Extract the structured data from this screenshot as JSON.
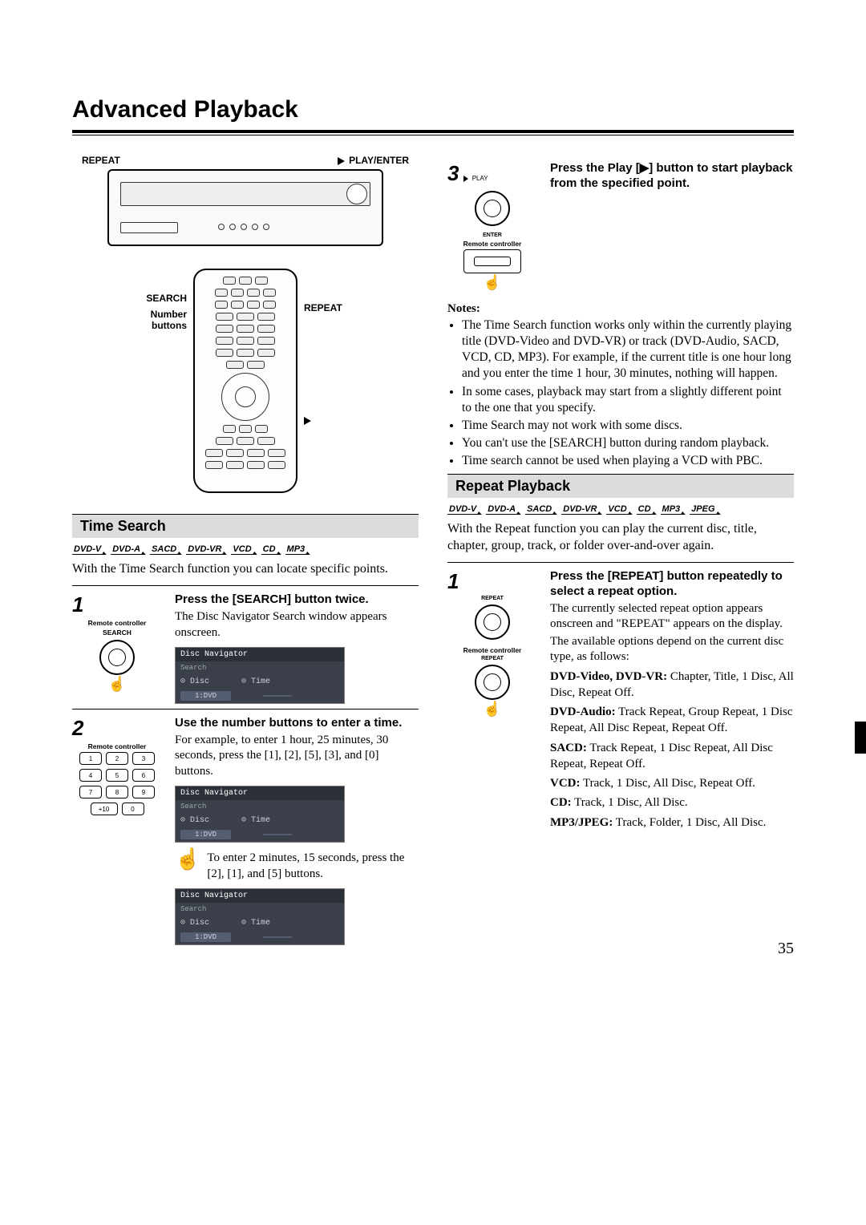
{
  "page_title": "Advanced Playback",
  "page_number": "35",
  "device_labels": {
    "repeat": "REPEAT",
    "play_enter": "PLAY/ENTER"
  },
  "remote_labels": {
    "search": "SEARCH",
    "number_buttons": "Number buttons",
    "repeat": "REPEAT",
    "play": "▶"
  },
  "left": {
    "section": "Time Search",
    "formats": [
      "DVD-V",
      "DVD-A",
      "SACD",
      "DVD-VR",
      "VCD",
      "CD",
      "MP3"
    ],
    "intro": "With the Time Search function you can locate specific points.",
    "step1": {
      "num": "1",
      "rc": "Remote controller",
      "btn": "SEARCH",
      "head": "Press the [SEARCH] button twice.",
      "text": "The Disc Navigator Search window appears onscreen.",
      "nav_title": "Disc Navigator",
      "nav_sub": "Search",
      "nav_disc": "⊙  Disc",
      "nav_discv": "1:DVD",
      "nav_time": "⊙  Time",
      "nav_timev": ""
    },
    "step2": {
      "num": "2",
      "rc": "Remote controller",
      "head": "Use the number buttons to enter a time.",
      "text1": "For example, to enter 1 hour, 25 minutes, 30 seconds, press the [1], [2], [5], [3], and [0] buttons.",
      "keys": [
        "1",
        "2",
        "3",
        "4",
        "5",
        "6",
        "7",
        "8",
        "9"
      ],
      "keys_extra": [
        "+10",
        "0"
      ],
      "nav_title": "Disc Navigator",
      "nav_sub": "Search",
      "nav_disc": "⊙  Disc",
      "nav_discv": "1:DVD",
      "nav_time": "⊙  Time",
      "nav_timev1": "",
      "text2": "To enter 2 minutes, 15 seconds, press the [2], [1], and [5] buttons.",
      "nav_timev2": ""
    }
  },
  "right": {
    "step3": {
      "num": "3",
      "play": "PLAY",
      "enter": "ENTER",
      "rc": "Remote controller",
      "head": "Press the Play [▶] button to start playback from the specified point."
    },
    "notes_h": "Notes:",
    "notes": [
      "The Time Search function works only within the currently playing title (DVD-Video and DVD-VR) or track (DVD-Audio, SACD, VCD, CD, MP3). For example, if the current title is one hour long and you enter the time 1 hour, 30 minutes, nothing will happen.",
      "In some cases, playback may start from a slightly different point to the one that you specify.",
      "Time Search may not work with some discs.",
      "You can't use the [SEARCH] button during random playback.",
      "Time search cannot be used when playing a VCD with PBC."
    ],
    "section": "Repeat Playback",
    "formats": [
      "DVD-V",
      "DVD-A",
      "SACD",
      "DVD-VR",
      "VCD",
      "CD",
      "MP3",
      "JPEG"
    ],
    "intro": "With the Repeat function you can play the current disc, title, chapter, group, track, or folder over-and-over again.",
    "step1": {
      "num": "1",
      "btn": "REPEAT",
      "rc": "Remote controller",
      "head": "Press the [REPEAT] button repeatedly to select a repeat option.",
      "text1": "The currently selected repeat option appears onscreen and \"REPEAT\" appears on the display.",
      "text2": "The available options depend on the current disc type, as follows:",
      "types": [
        {
          "k": "DVD-Video, DVD-VR:",
          "v": " Chapter, Title, 1 Disc, All Disc, Repeat Off."
        },
        {
          "k": "DVD-Audio:",
          "v": " Track Repeat, Group Repeat, 1 Disc Repeat, All Disc Repeat, Repeat Off."
        },
        {
          "k": "SACD:",
          "v": " Track Repeat, 1 Disc Repeat, All Disc Repeat, Repeat Off."
        },
        {
          "k": "VCD:",
          "v": " Track, 1 Disc, All Disc, Repeat Off."
        },
        {
          "k": "CD:",
          "v": " Track, 1 Disc, All Disc."
        },
        {
          "k": "MP3/JPEG:",
          "v": " Track, Folder, 1 Disc, All Disc."
        }
      ]
    }
  }
}
